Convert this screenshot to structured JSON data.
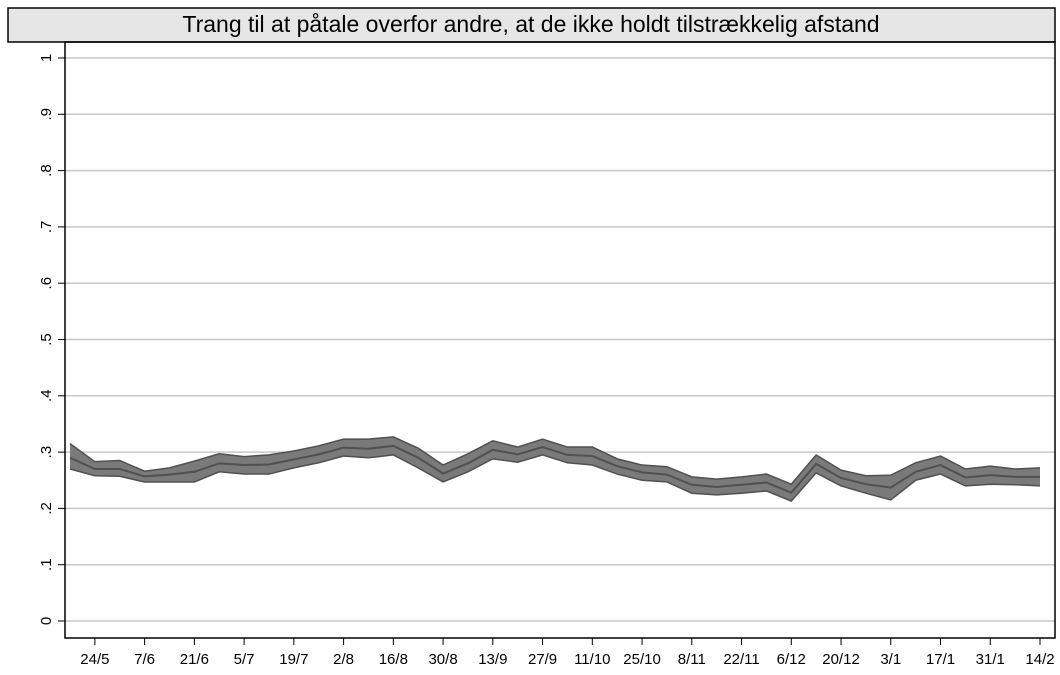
{
  "chart_data": {
    "type": "line",
    "title": "Trang til at påtale overfor andre, at de ikke holdt tilstrækkelig afstand",
    "categories": [
      null,
      "24/5",
      null,
      "7/6",
      null,
      "21/6",
      null,
      "5/7",
      null,
      "19/7",
      null,
      "2/8",
      null,
      "16/8",
      null,
      "30/8",
      null,
      "13/9",
      null,
      "27/9",
      null,
      "11/10",
      null,
      "25/10",
      null,
      "8/11",
      null,
      "22/11",
      null,
      "6/12",
      null,
      "20/12",
      null,
      "3/1",
      null,
      "17/1",
      null,
      "31/1",
      null,
      "14/2"
    ],
    "series": [
      {
        "color": "#505050",
        "band_color": "#7a7a7a",
        "values": [
          0.29,
          0.27,
          0.27,
          0.257,
          0.26,
          0.265,
          0.28,
          0.277,
          0.278,
          0.287,
          0.296,
          0.308,
          0.306,
          0.311,
          0.29,
          0.262,
          0.28,
          0.304,
          0.296,
          0.309,
          0.295,
          0.293,
          0.275,
          0.264,
          0.26,
          0.242,
          0.238,
          0.242,
          0.246,
          0.228,
          0.279,
          0.254,
          0.243,
          0.237,
          0.265,
          0.277,
          0.255,
          0.259,
          0.256,
          0.256
        ],
        "lower": [
          0.27,
          0.258,
          0.257,
          0.247,
          0.247,
          0.247,
          0.265,
          0.261,
          0.261,
          0.272,
          0.281,
          0.293,
          0.29,
          0.295,
          0.272,
          0.247,
          0.265,
          0.288,
          0.282,
          0.295,
          0.281,
          0.277,
          0.261,
          0.25,
          0.247,
          0.227,
          0.224,
          0.227,
          0.231,
          0.213,
          0.263,
          0.24,
          0.227,
          0.215,
          0.25,
          0.261,
          0.24,
          0.243,
          0.242,
          0.24
        ],
        "upper": [
          0.315,
          0.283,
          0.285,
          0.266,
          0.272,
          0.284,
          0.297,
          0.292,
          0.295,
          0.302,
          0.311,
          0.323,
          0.323,
          0.327,
          0.307,
          0.277,
          0.297,
          0.32,
          0.309,
          0.323,
          0.309,
          0.309,
          0.288,
          0.277,
          0.274,
          0.256,
          0.252,
          0.256,
          0.261,
          0.243,
          0.295,
          0.268,
          0.258,
          0.259,
          0.281,
          0.293,
          0.27,
          0.275,
          0.27,
          0.272
        ]
      }
    ],
    "ylim": [
      0,
      1
    ],
    "yticks": [
      0,
      {
        "value": 0.1,
        "label": ".1"
      },
      {
        "value": 0.2,
        "label": ".2"
      },
      {
        "value": 0.3,
        "label": ".3"
      },
      {
        "value": 0.4,
        "label": ".4"
      },
      {
        "value": 0.5,
        "label": ".5"
      },
      {
        "value": 0.6,
        "label": ".6"
      },
      {
        "value": 0.7,
        "label": ".7"
      },
      {
        "value": 0.8,
        "label": ".8"
      },
      {
        "value": 0.9,
        "label": ".9"
      },
      1
    ],
    "grid": true
  }
}
